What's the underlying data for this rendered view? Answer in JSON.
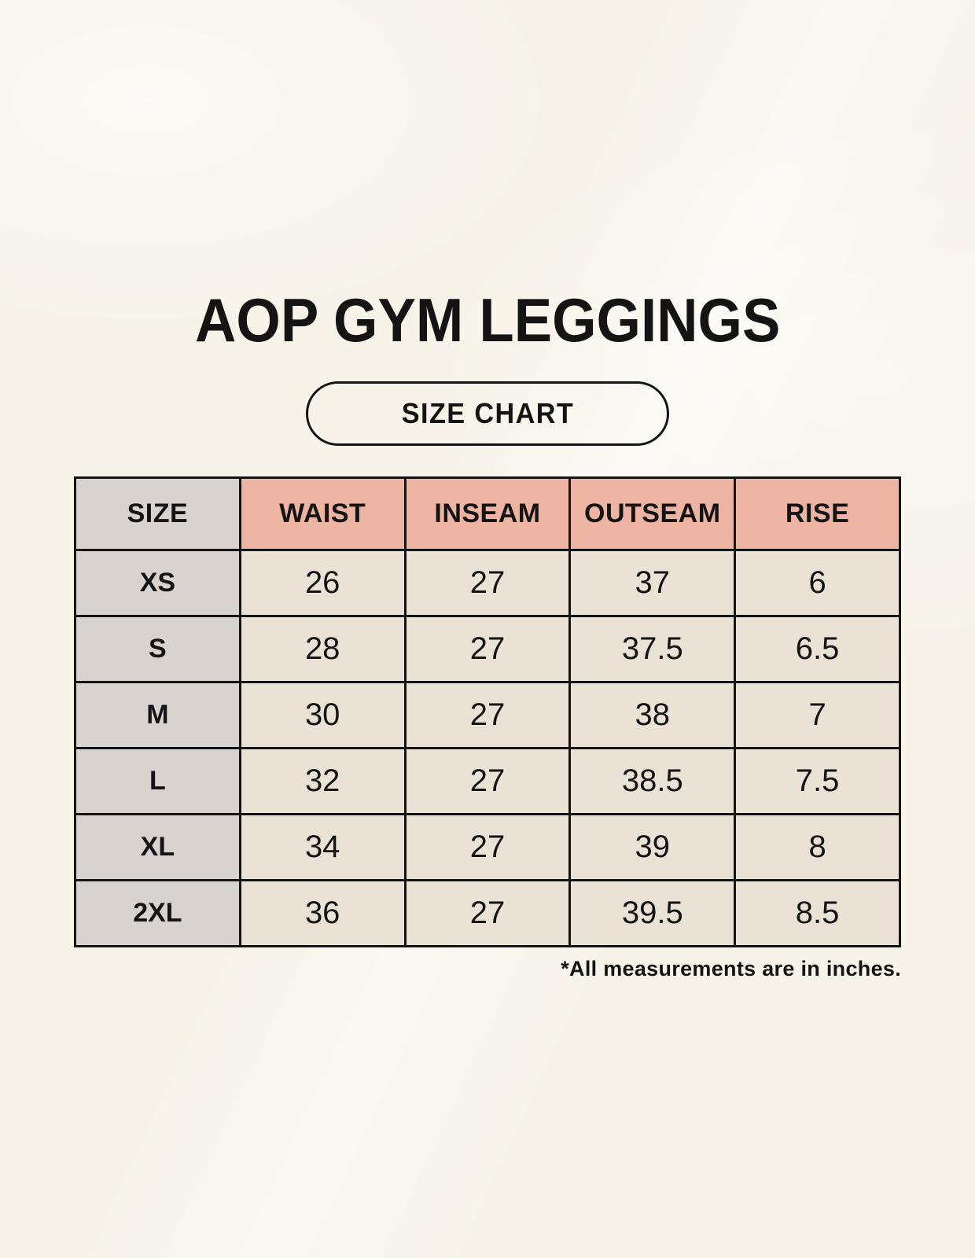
{
  "page": {
    "title": "AOP GYM LEGGINGS",
    "badge": "SIZE CHART",
    "footnote": "*All measurements are in inches."
  },
  "colors": {
    "background": "#f7f3e9",
    "header_accent_salmon": "#eeb4a3",
    "size_column_gray": "#d9d3d0",
    "cell_cream": "#e9e2d5",
    "border": "#141414",
    "text": "#141414"
  },
  "chart_data": {
    "type": "table",
    "title": "AOP GYM LEGGINGS",
    "subtitle": "SIZE CHART",
    "units": "inches",
    "columns": [
      "SIZE",
      "WAIST",
      "INSEAM",
      "OUTSEAM",
      "RISE"
    ],
    "rows": [
      {
        "size": "XS",
        "values": [
          "26",
          "27",
          "37",
          "6"
        ]
      },
      {
        "size": "S",
        "values": [
          "28",
          "27",
          "37.5",
          "6.5"
        ]
      },
      {
        "size": "M",
        "values": [
          "30",
          "27",
          "38",
          "7"
        ]
      },
      {
        "size": "L",
        "values": [
          "32",
          "27",
          "38.5",
          "7.5"
        ]
      },
      {
        "size": "XL",
        "values": [
          "34",
          "27",
          "39",
          "8"
        ]
      },
      {
        "size": "2XL",
        "values": [
          "36",
          "27",
          "39.5",
          "8.5"
        ]
      }
    ],
    "footnote": "*All measurements are in inches."
  }
}
